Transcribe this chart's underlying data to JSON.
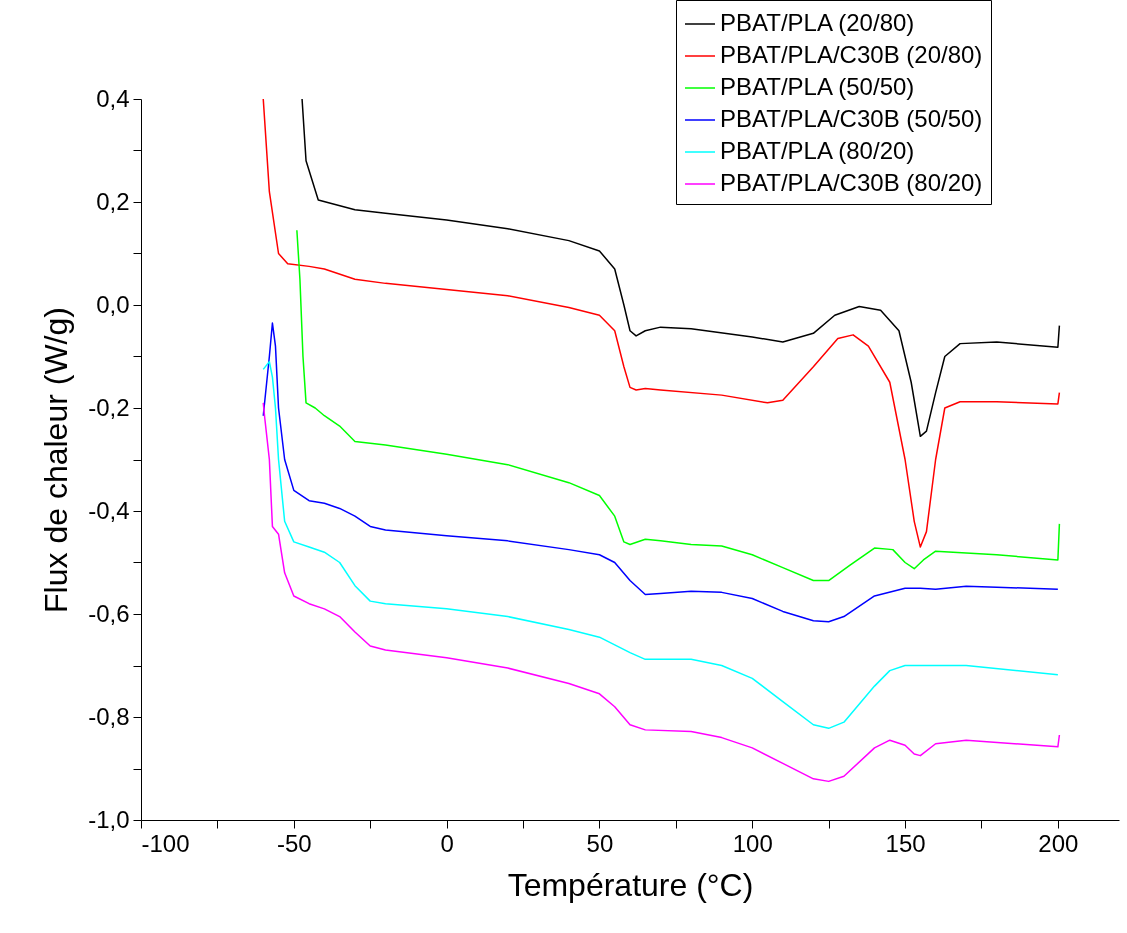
{
  "chart_data": {
    "type": "line",
    "xlabel": "Température (°C)",
    "ylabel": "Flux de chaleur (W/g)",
    "xlim": [
      -100,
      220
    ],
    "ylim": [
      -1.0,
      0.4
    ],
    "xticks": [
      -100,
      {
        "value": -75,
        "label": null
      },
      -50,
      {
        "value": -25,
        "label": null
      },
      0,
      {
        "value": 25,
        "label": null
      },
      50,
      {
        "value": 75,
        "label": null
      },
      100,
      {
        "value": 125,
        "label": null
      },
      150,
      {
        "value": 175,
        "label": null
      },
      200
    ],
    "yticks": [
      {
        "value": -1.0,
        "label": "-1,0"
      },
      {
        "value": -0.9,
        "label": null
      },
      {
        "value": -0.8,
        "label": "-0,8"
      },
      {
        "value": -0.7,
        "label": null
      },
      {
        "value": -0.6,
        "label": "-0,6"
      },
      {
        "value": -0.5,
        "label": null
      },
      {
        "value": -0.4,
        "label": "-0,4"
      },
      {
        "value": -0.3,
        "label": null
      },
      {
        "value": -0.2,
        "label": "-0,2"
      },
      {
        "value": -0.1,
        "label": null
      },
      {
        "value": 0,
        "label": "0,0"
      },
      {
        "value": 0.1,
        "label": null
      },
      {
        "value": 0.2,
        "label": "0,2"
      },
      {
        "value": 0.3,
        "label": null
      },
      {
        "value": 0.4,
        "label": "0,4"
      }
    ],
    "grid": false,
    "legend": "top right",
    "marker": "none",
    "line_style": "solid",
    "series": [
      {
        "name": "PBAT/PLA (20/80)",
        "color": "#000000",
        "x": [
          -47.3,
          -46,
          -42,
          -30,
          -20,
          0,
          20,
          40,
          50,
          55,
          58,
          60,
          62,
          65,
          70,
          80,
          100,
          110,
          120,
          127,
          135,
          142,
          148,
          152,
          155,
          157,
          160,
          163,
          168,
          180,
          200,
          200.5
        ],
        "values": [
          0.4,
          0.28,
          0.204,
          0.185,
          0.178,
          0.165,
          0.148,
          0.125,
          0.105,
          0.07,
          0.0,
          -0.05,
          -0.06,
          -0.05,
          -0.043,
          -0.046,
          -0.062,
          -0.072,
          -0.055,
          -0.02,
          -0.003,
          -0.01,
          -0.05,
          -0.15,
          -0.255,
          -0.245,
          -0.17,
          -0.1,
          -0.075,
          -0.072,
          -0.082,
          -0.04
        ]
      },
      {
        "name": "PBAT/PLA/C30B (20/80)",
        "color": "#ff0000",
        "x": [
          -60,
          -58,
          -55,
          -52,
          -45,
          -40,
          -30,
          -20,
          0,
          20,
          40,
          50,
          55,
          58,
          60,
          62,
          65,
          70,
          90,
          105,
          110,
          120,
          128,
          133,
          138,
          145,
          150,
          153,
          155,
          157,
          160,
          163,
          168,
          180,
          200,
          200.5
        ],
        "values": [
          0.4,
          0.22,
          0.1,
          0.08,
          0.075,
          0.07,
          0.05,
          0.042,
          0.03,
          0.018,
          -0.005,
          -0.02,
          -0.05,
          -0.12,
          -0.16,
          -0.165,
          -0.162,
          -0.165,
          -0.175,
          -0.19,
          -0.185,
          -0.12,
          -0.065,
          -0.058,
          -0.08,
          -0.15,
          -0.3,
          -0.42,
          -0.47,
          -0.44,
          -0.3,
          -0.2,
          -0.188,
          -0.188,
          -0.192,
          -0.17
        ]
      },
      {
        "name": "PBAT/PLA (50/50)",
        "color": "#00ff00",
        "x": [
          -49,
          -48,
          -47,
          -46,
          -43,
          -40,
          -35,
          -30,
          -20,
          0,
          20,
          40,
          50,
          55,
          58,
          60,
          65,
          70,
          80,
          90,
          100,
          110,
          120,
          125,
          132,
          140,
          146,
          150,
          153,
          156,
          160,
          180,
          200,
          200.5
        ],
        "values": [
          0.145,
          0.05,
          -0.1,
          -0.19,
          -0.2,
          -0.215,
          -0.235,
          -0.265,
          -0.272,
          -0.29,
          -0.31,
          -0.345,
          -0.37,
          -0.41,
          -0.46,
          -0.465,
          -0.455,
          -0.458,
          -0.465,
          -0.468,
          -0.485,
          -0.51,
          -0.535,
          -0.535,
          -0.505,
          -0.472,
          -0.475,
          -0.5,
          -0.512,
          -0.495,
          -0.478,
          -0.485,
          -0.495,
          -0.425
        ]
      },
      {
        "name": "PBAT/PLA/C30B (50/50)",
        "color": "#0000ff",
        "x": [
          -60,
          -58,
          -57,
          -56,
          -55,
          -53,
          -50,
          -45,
          -40,
          -35,
          -30,
          -25,
          -20,
          0,
          20,
          40,
          50,
          55,
          60,
          65,
          70,
          80,
          90,
          100,
          110,
          120,
          125,
          130,
          140,
          150,
          155,
          160,
          170,
          180,
          200
        ],
        "values": [
          -0.215,
          -0.1,
          -0.035,
          -0.08,
          -0.2,
          -0.3,
          -0.36,
          -0.38,
          -0.385,
          -0.395,
          -0.41,
          -0.43,
          -0.437,
          -0.448,
          -0.458,
          -0.475,
          -0.485,
          -0.5,
          -0.535,
          -0.562,
          -0.56,
          -0.556,
          -0.558,
          -0.57,
          -0.595,
          -0.613,
          -0.615,
          -0.605,
          -0.565,
          -0.55,
          -0.55,
          -0.552,
          -0.546,
          -0.548,
          -0.552
        ]
      },
      {
        "name": "PBAT/PLA (80/20)",
        "color": "#00ffff",
        "x": [
          -60,
          -58,
          -57,
          -56,
          -55,
          -53,
          -50,
          -45,
          -40,
          -35,
          -30,
          -25,
          -20,
          0,
          20,
          40,
          50,
          55,
          60,
          65,
          80,
          90,
          100,
          110,
          120,
          125,
          130,
          140,
          145,
          150,
          160,
          170,
          200
        ],
        "values": [
          -0.125,
          -0.11,
          -0.14,
          -0.2,
          -0.3,
          -0.42,
          -0.46,
          -0.47,
          -0.48,
          -0.5,
          -0.545,
          -0.575,
          -0.58,
          -0.59,
          -0.605,
          -0.63,
          -0.645,
          -0.66,
          -0.675,
          -0.688,
          -0.688,
          -0.7,
          -0.725,
          -0.77,
          -0.815,
          -0.822,
          -0.81,
          -0.74,
          -0.71,
          -0.7,
          -0.7,
          -0.7,
          -0.718
        ]
      },
      {
        "name": "PBAT/PLA/C30B (80/20)",
        "color": "#ff00ff",
        "x": [
          -60,
          -59.5,
          -58,
          -57,
          -55,
          -53,
          -50,
          -45,
          -40,
          -35,
          -30,
          -25,
          -20,
          0,
          20,
          40,
          50,
          55,
          60,
          65,
          80,
          90,
          100,
          110,
          120,
          125,
          130,
          140,
          145,
          150,
          153,
          155,
          160,
          170,
          200,
          200.5
        ],
        "values": [
          -0.19,
          -0.22,
          -0.3,
          -0.43,
          -0.445,
          -0.52,
          -0.565,
          -0.58,
          -0.59,
          -0.605,
          -0.635,
          -0.662,
          -0.67,
          -0.685,
          -0.705,
          -0.735,
          -0.755,
          -0.78,
          -0.815,
          -0.825,
          -0.828,
          -0.84,
          -0.86,
          -0.89,
          -0.92,
          -0.925,
          -0.915,
          -0.86,
          -0.845,
          -0.855,
          -0.872,
          -0.875,
          -0.852,
          -0.845,
          -0.858,
          -0.835
        ]
      }
    ]
  }
}
